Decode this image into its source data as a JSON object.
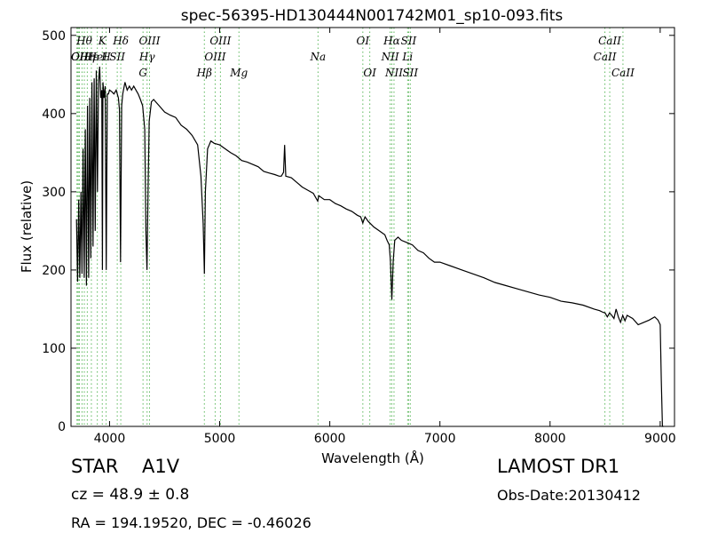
{
  "info": {
    "object_class": "STAR",
    "subclass": "A1V",
    "survey": "LAMOST DR1",
    "cz": "cz = 48.9 ± 0.8",
    "obs_date": "Obs-Date:20130412",
    "coords": "RA = 194.19520, DEC = -0.46026"
  },
  "colors": {
    "spectrum": "#000000",
    "line_markers": "#5cb85c"
  },
  "chart_data": {
    "type": "line",
    "title": "spec-56395-HD130444N001742M01_sp10-093.fits",
    "xlabel": "Wavelength (Å)",
    "ylabel": "Flux (relative)",
    "xlim": [
      3650,
      9130
    ],
    "ylim": [
      0,
      510
    ],
    "xticks": [
      4000,
      5000,
      6000,
      7000,
      8000,
      9000
    ],
    "yticks": [
      0,
      100,
      200,
      300,
      400,
      500
    ],
    "grid": false,
    "series": [
      {
        "x": [
          3700,
          3710,
          3720,
          3730,
          3740,
          3750,
          3760,
          3770,
          3780,
          3790,
          3800,
          3810,
          3820,
          3830,
          3840,
          3850,
          3860,
          3870,
          3880,
          3890,
          3900,
          3910,
          3920,
          3930,
          3935,
          3940,
          3950,
          3960,
          3970,
          3980,
          3990,
          4000,
          4020,
          4040,
          4060,
          4080,
          4090,
          4100,
          4110,
          4120,
          4140,
          4160,
          4180,
          4200,
          4220,
          4240,
          4260,
          4280,
          4300,
          4320,
          4330,
          4340,
          4350,
          4360,
          4380,
          4400,
          4450,
          4500,
          4550,
          4600,
          4650,
          4700,
          4750,
          4800,
          4830,
          4850,
          4861,
          4870,
          4890,
          4920,
          4950,
          5000,
          5050,
          5100,
          5150,
          5200,
          5250,
          5300,
          5350,
          5400,
          5450,
          5500,
          5540,
          5560,
          5580,
          5590,
          5600,
          5650,
          5700,
          5750,
          5800,
          5850,
          5890,
          5900,
          5950,
          6000,
          6050,
          6100,
          6150,
          6200,
          6250,
          6280,
          6300,
          6320,
          6350,
          6400,
          6450,
          6500,
          6520,
          6540,
          6550,
          6563,
          6575,
          6590,
          6620,
          6650,
          6700,
          6750,
          6800,
          6850,
          6900,
          6950,
          7000,
          7100,
          7200,
          7300,
          7400,
          7500,
          7600,
          7700,
          7800,
          7900,
          8000,
          8100,
          8200,
          8300,
          8400,
          8450,
          8480,
          8500,
          8520,
          8540,
          8560,
          8580,
          8600,
          8620,
          8640,
          8660,
          8680,
          8700,
          8750,
          8800,
          8850,
          8900,
          8950,
          8980,
          9000,
          9010,
          9020,
          9030
        ],
        "y": [
          265,
          185,
          290,
          190,
          300,
          195,
          355,
          190,
          380,
          180,
          410,
          190,
          420,
          215,
          440,
          230,
          445,
          250,
          455,
          300,
          440,
          460,
          420,
          430,
          200,
          440,
          420,
          435,
          200,
          425,
          425,
          430,
          428,
          425,
          430,
          420,
          405,
          210,
          410,
          425,
          440,
          430,
          435,
          430,
          435,
          430,
          425,
          418,
          410,
          380,
          250,
          200,
          305,
          390,
          415,
          418,
          410,
          402,
          398,
          395,
          385,
          380,
          372,
          360,
          320,
          260,
          195,
          300,
          355,
          365,
          362,
          360,
          355,
          350,
          346,
          340,
          338,
          335,
          332,
          326,
          324,
          322,
          320,
          320,
          325,
          360,
          320,
          318,
          312,
          306,
          302,
          298,
          288,
          295,
          290,
          290,
          285,
          282,
          278,
          275,
          270,
          268,
          260,
          268,
          262,
          255,
          250,
          245,
          238,
          232,
          212,
          162,
          210,
          238,
          242,
          238,
          235,
          232,
          225,
          222,
          215,
          210,
          210,
          205,
          200,
          195,
          190,
          184,
          180,
          176,
          172,
          168,
          165,
          160,
          158,
          155,
          150,
          148,
          146,
          145,
          140,
          145,
          142,
          138,
          150,
          140,
          133,
          142,
          135,
          142,
          138,
          130,
          133,
          136,
          140,
          136,
          130,
          60,
          0,
          0
        ]
      }
    ],
    "line_labels": [
      {
        "wl": 3727,
        "text": "OII",
        "row": 2
      },
      {
        "wl": 3729,
        "text": "OII",
        "row": 3
      },
      {
        "wl": 3771,
        "text": "Hθ",
        "row": 1
      },
      {
        "wl": 3798,
        "text": "Hη",
        "row": 3
      },
      {
        "wl": 3835,
        "text": "Hε",
        "row": 2
      },
      {
        "wl": 3934,
        "text": "K",
        "row": 1
      },
      {
        "wl": 3889,
        "text": "HeI",
        "row": 2
      },
      {
        "wl": 3969,
        "text": "H",
        "row": 3
      },
      {
        "wl": 4070,
        "text": "SII",
        "row": 2
      },
      {
        "wl": 4102,
        "text": "Hδ",
        "row": 1
      },
      {
        "wl": 4341,
        "text": "Hγ",
        "row": 2
      },
      {
        "wl": 4363,
        "text": "OIII",
        "row": 1
      },
      {
        "wl": 4304,
        "text": "G",
        "row": 4
      },
      {
        "wl": 4861,
        "text": "Hβ",
        "row": 4
      },
      {
        "wl": 4959,
        "text": "OIII",
        "row": 3
      },
      {
        "wl": 5007,
        "text": "OIII",
        "row": 1
      },
      {
        "wl": 5175,
        "text": "Mg",
        "row": 4
      },
      {
        "wl": 5893,
        "text": "Na",
        "row": 3
      },
      {
        "wl": 6300,
        "text": "OI",
        "row": 1
      },
      {
        "wl": 6363,
        "text": "OI",
        "row": 4
      },
      {
        "wl": 6548,
        "text": "NII",
        "row": 3
      },
      {
        "wl": 6563,
        "text": "Hα",
        "row": 1
      },
      {
        "wl": 6583,
        "text": "NII",
        "row": 4
      },
      {
        "wl": 6707,
        "text": "Li",
        "row": 3
      },
      {
        "wl": 6716,
        "text": "SII",
        "row": 1
      },
      {
        "wl": 6731,
        "text": "SII",
        "row": 4
      },
      {
        "wl": 8498,
        "text": "CaII",
        "row": 2
      },
      {
        "wl": 8542,
        "text": "CaII",
        "row": 1
      },
      {
        "wl": 8662,
        "text": "CaII",
        "row": 4
      }
    ],
    "marker_lines": [
      3704,
      3712,
      3722,
      3727,
      3750,
      3771,
      3798,
      3835,
      3889,
      3934,
      3969,
      4070,
      4102,
      4304,
      4341,
      4363,
      4861,
      4959,
      5007,
      5175,
      5893,
      6300,
      6363,
      6548,
      6563,
      6583,
      6707,
      6716,
      6731,
      8498,
      8542,
      8662
    ]
  }
}
